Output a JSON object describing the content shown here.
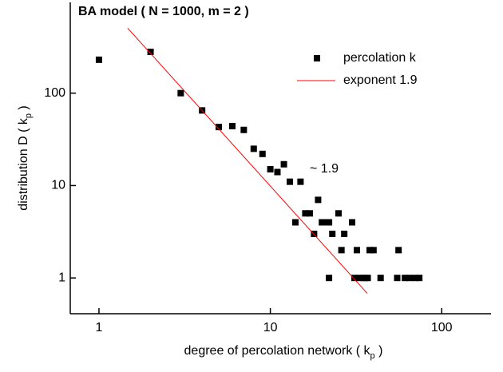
{
  "chart_data": {
    "type": "scatter",
    "title": "BA model ( N = 1000, m = 2 )",
    "x_label": {
      "text": "degree of percolation network ( k",
      "sub": "p",
      "end": " )"
    },
    "y_label": {
      "text": "distribution D ( k",
      "sub": "p",
      "end": " )"
    },
    "annotation": "~ 1.9",
    "log_x": true,
    "log_y": true,
    "xlim": [
      0.68,
      194
    ],
    "ylim": [
      0.41,
      960
    ],
    "xticks": [
      1,
      10,
      100
    ],
    "yticks": [
      1,
      10,
      100
    ],
    "legend": "upper right",
    "series": [
      {
        "name": "percolation k",
        "color": "#000000",
        "type": "scatter",
        "x": [
          1,
          2,
          3,
          4,
          5,
          6,
          7,
          8,
          9,
          10,
          11,
          12,
          13,
          14,
          15,
          16,
          17,
          18,
          19,
          20,
          21,
          22,
          22,
          23,
          25,
          26,
          27,
          30,
          31,
          32,
          33,
          35,
          36,
          37,
          38,
          40,
          44,
          55,
          56,
          61,
          65,
          70,
          74
        ],
        "values": [
          230,
          280,
          100,
          65,
          43,
          44,
          40,
          25,
          22,
          15,
          14,
          17,
          11,
          4,
          11,
          5,
          5,
          3,
          7,
          4,
          4,
          4,
          1,
          3,
          5,
          2,
          3,
          4,
          1,
          2,
          1,
          1,
          1,
          1,
          2,
          2,
          1,
          1,
          2,
          1,
          1,
          1,
          1
        ]
      },
      {
        "name": "exponent 1.9",
        "color": "#ff0000",
        "type": "line",
        "x": [
          1.47,
          36.8
        ],
        "values": [
          506,
          0.68
        ]
      }
    ]
  }
}
